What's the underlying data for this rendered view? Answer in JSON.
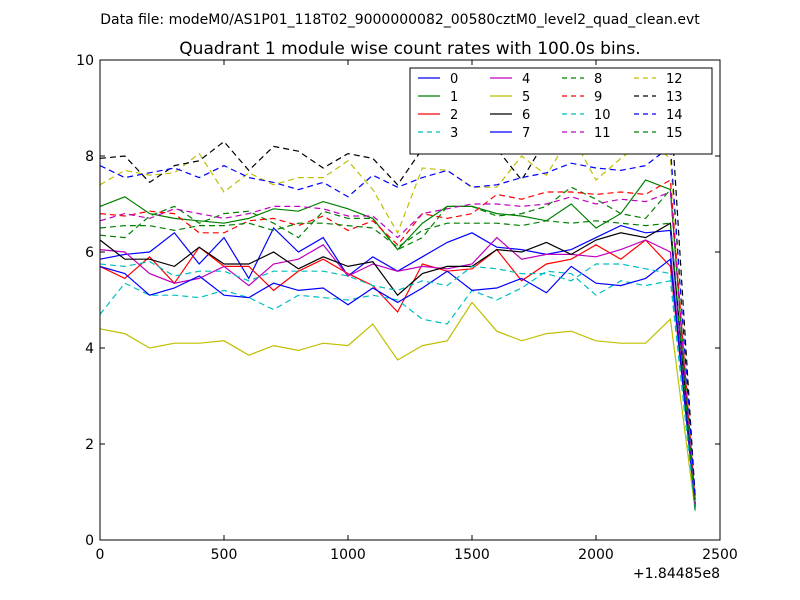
{
  "suptitle": "Data file: modeM0/AS1P01_118T02_9000000082_00580cztM0_level2_quad_clean.evt",
  "chart_data": {
    "type": "line",
    "title": "Quadrant 1 module wise count rates with 100.0s bins.",
    "xlabel": "",
    "ylabel": "",
    "x_offset_label": "+1.84485e8",
    "xlim": [
      0,
      2500
    ],
    "ylim": [
      0,
      10
    ],
    "x_ticks": [
      0,
      500,
      1000,
      1500,
      2000,
      2500
    ],
    "x_tick_labels": [
      "0",
      "500",
      "1000",
      "1500",
      "2000",
      "2500"
    ],
    "y_ticks": [
      0,
      2,
      4,
      6,
      8,
      10
    ],
    "y_tick_labels": [
      "0",
      "2",
      "4",
      "6",
      "8",
      "10"
    ],
    "grid": false,
    "legend": {
      "placement": "top-right",
      "columns": 4
    },
    "x": [
      0,
      100,
      200,
      300,
      400,
      500,
      600,
      700,
      800,
      900,
      1000,
      1100,
      1200,
      1300,
      1400,
      1500,
      1600,
      1700,
      1800,
      1900,
      2000,
      2100,
      2200,
      2300,
      2400
    ],
    "series": [
      {
        "name": "0",
        "color": "#0000ff",
        "dash": "solid",
        "values": [
          5.85,
          5.95,
          6.0,
          6.4,
          5.75,
          6.3,
          5.45,
          6.5,
          6.0,
          6.3,
          5.5,
          5.9,
          5.6,
          5.9,
          6.2,
          6.4,
          6.1,
          6.05,
          5.95,
          6.05,
          6.3,
          6.55,
          6.4,
          6.45,
          0.8
        ]
      },
      {
        "name": "1",
        "color": "#008000",
        "dash": "solid",
        "values": [
          6.95,
          7.15,
          6.8,
          6.7,
          6.65,
          6.6,
          6.7,
          6.9,
          6.85,
          7.05,
          6.9,
          6.7,
          6.05,
          6.6,
          6.95,
          6.95,
          6.8,
          6.75,
          6.65,
          7.0,
          6.5,
          6.8,
          7.5,
          7.3,
          0.7
        ]
      },
      {
        "name": "2",
        "color": "#ff0000",
        "dash": "solid",
        "values": [
          5.7,
          5.45,
          5.9,
          5.35,
          6.1,
          5.7,
          5.7,
          5.2,
          5.6,
          5.85,
          5.55,
          5.3,
          4.75,
          5.75,
          5.6,
          5.65,
          6.05,
          5.4,
          5.75,
          5.85,
          6.15,
          5.85,
          6.25,
          5.7,
          0.75
        ]
      },
      {
        "name": "3",
        "color": "#00bfbf",
        "dash": "dashed",
        "values": [
          4.7,
          5.35,
          5.1,
          5.1,
          5.05,
          5.2,
          5.05,
          4.8,
          5.1,
          5.05,
          5.0,
          5.1,
          5.0,
          4.6,
          4.5,
          5.2,
          5.0,
          5.25,
          5.6,
          5.55,
          5.1,
          5.4,
          5.3,
          5.4,
          0.6
        ]
      },
      {
        "name": "4",
        "color": "#bf00bf",
        "dash": "solid",
        "values": [
          6.05,
          6.0,
          5.55,
          5.35,
          5.45,
          5.7,
          5.3,
          5.75,
          5.85,
          6.15,
          5.5,
          5.75,
          5.6,
          5.7,
          5.65,
          5.75,
          6.3,
          5.85,
          5.95,
          5.95,
          5.9,
          6.05,
          6.25,
          6.0,
          0.8
        ]
      },
      {
        "name": "5",
        "color": "#bfbf00",
        "dash": "solid",
        "values": [
          4.4,
          4.3,
          4.0,
          4.1,
          4.1,
          4.15,
          3.85,
          4.05,
          3.95,
          4.1,
          4.05,
          4.5,
          3.75,
          4.05,
          4.15,
          4.95,
          4.35,
          4.15,
          4.3,
          4.35,
          4.15,
          4.1,
          4.1,
          4.6,
          0.6
        ]
      },
      {
        "name": "6",
        "color": "#000000",
        "dash": "solid",
        "values": [
          6.25,
          5.85,
          5.85,
          5.7,
          6.1,
          5.75,
          5.75,
          6.0,
          5.65,
          5.9,
          5.7,
          5.8,
          5.1,
          5.55,
          5.7,
          5.7,
          6.05,
          6.0,
          6.2,
          5.95,
          6.25,
          6.4,
          6.3,
          6.6,
          0.75
        ]
      },
      {
        "name": "7",
        "color": "#0000ff",
        "dash": "solid",
        "values": [
          5.7,
          5.55,
          5.1,
          5.25,
          5.5,
          5.1,
          5.05,
          5.35,
          5.2,
          5.25,
          4.9,
          5.25,
          4.95,
          5.25,
          5.6,
          5.2,
          5.25,
          5.45,
          5.15,
          5.7,
          5.35,
          5.3,
          5.45,
          5.85,
          0.7
        ]
      },
      {
        "name": "8",
        "color": "#008000",
        "dash": "dashed",
        "values": [
          6.35,
          6.3,
          6.75,
          6.95,
          6.6,
          6.8,
          6.85,
          6.6,
          6.3,
          6.85,
          6.7,
          6.7,
          6.05,
          6.3,
          6.95,
          6.95,
          6.75,
          6.8,
          6.95,
          7.35,
          7.1,
          6.8,
          6.7,
          7.3,
          0.75
        ]
      },
      {
        "name": "9",
        "color": "#ff0000",
        "dash": "dashed",
        "values": [
          6.8,
          6.75,
          6.85,
          6.8,
          6.4,
          6.4,
          6.65,
          6.7,
          6.55,
          6.75,
          6.45,
          6.65,
          6.15,
          6.8,
          6.7,
          6.8,
          7.2,
          7.1,
          7.25,
          7.25,
          7.2,
          7.25,
          7.2,
          7.5,
          0.8
        ]
      },
      {
        "name": "10",
        "color": "#00bfbf",
        "dash": "dashed",
        "values": [
          5.75,
          5.7,
          5.8,
          5.5,
          5.6,
          5.6,
          5.4,
          5.6,
          5.6,
          5.6,
          5.5,
          5.3,
          5.2,
          5.4,
          5.3,
          5.7,
          5.65,
          5.55,
          5.55,
          5.4,
          5.75,
          5.75,
          5.65,
          5.55,
          0.6
        ]
      },
      {
        "name": "11",
        "color": "#bf00bf",
        "dash": "dashed",
        "values": [
          6.65,
          6.8,
          6.7,
          6.9,
          6.8,
          6.7,
          6.8,
          6.95,
          6.95,
          6.9,
          6.75,
          6.75,
          6.3,
          6.8,
          6.9,
          7.0,
          7.0,
          6.95,
          7.0,
          7.15,
          7.0,
          7.1,
          7.05,
          7.25,
          0.75
        ]
      },
      {
        "name": "12",
        "color": "#bfbf00",
        "dash": "dashed",
        "values": [
          7.4,
          7.7,
          7.6,
          7.65,
          8.05,
          7.25,
          7.65,
          7.4,
          7.55,
          7.55,
          7.9,
          7.3,
          6.4,
          7.75,
          7.7,
          7.35,
          7.35,
          8.0,
          7.6,
          8.45,
          7.5,
          7.95,
          8.35,
          7.95,
          0.8
        ]
      },
      {
        "name": "13",
        "color": "#000000",
        "dash": "dashed",
        "values": [
          7.95,
          8.0,
          7.45,
          7.8,
          7.9,
          8.3,
          7.7,
          8.2,
          8.1,
          7.75,
          8.05,
          7.95,
          7.4,
          8.15,
          8.8,
          8.05,
          8.15,
          7.5,
          8.35,
          8.4,
          8.9,
          8.3,
          9.0,
          9.15,
          0.9
        ]
      },
      {
        "name": "14",
        "color": "#0000ff",
        "dash": "dashed",
        "values": [
          7.8,
          7.55,
          7.65,
          7.75,
          7.55,
          7.8,
          7.55,
          7.45,
          7.3,
          7.45,
          7.15,
          7.6,
          7.35,
          7.55,
          7.7,
          7.35,
          7.4,
          7.55,
          7.65,
          7.85,
          7.75,
          7.7,
          7.8,
          8.2,
          0.85
        ]
      },
      {
        "name": "15",
        "color": "#008000",
        "dash": "dashed",
        "values": [
          6.5,
          6.55,
          6.55,
          6.45,
          6.55,
          6.55,
          6.6,
          6.45,
          6.6,
          6.6,
          6.55,
          6.5,
          6.1,
          6.45,
          6.6,
          6.6,
          6.6,
          6.55,
          6.65,
          6.6,
          6.65,
          6.6,
          6.55,
          6.6,
          0.65
        ]
      }
    ]
  }
}
